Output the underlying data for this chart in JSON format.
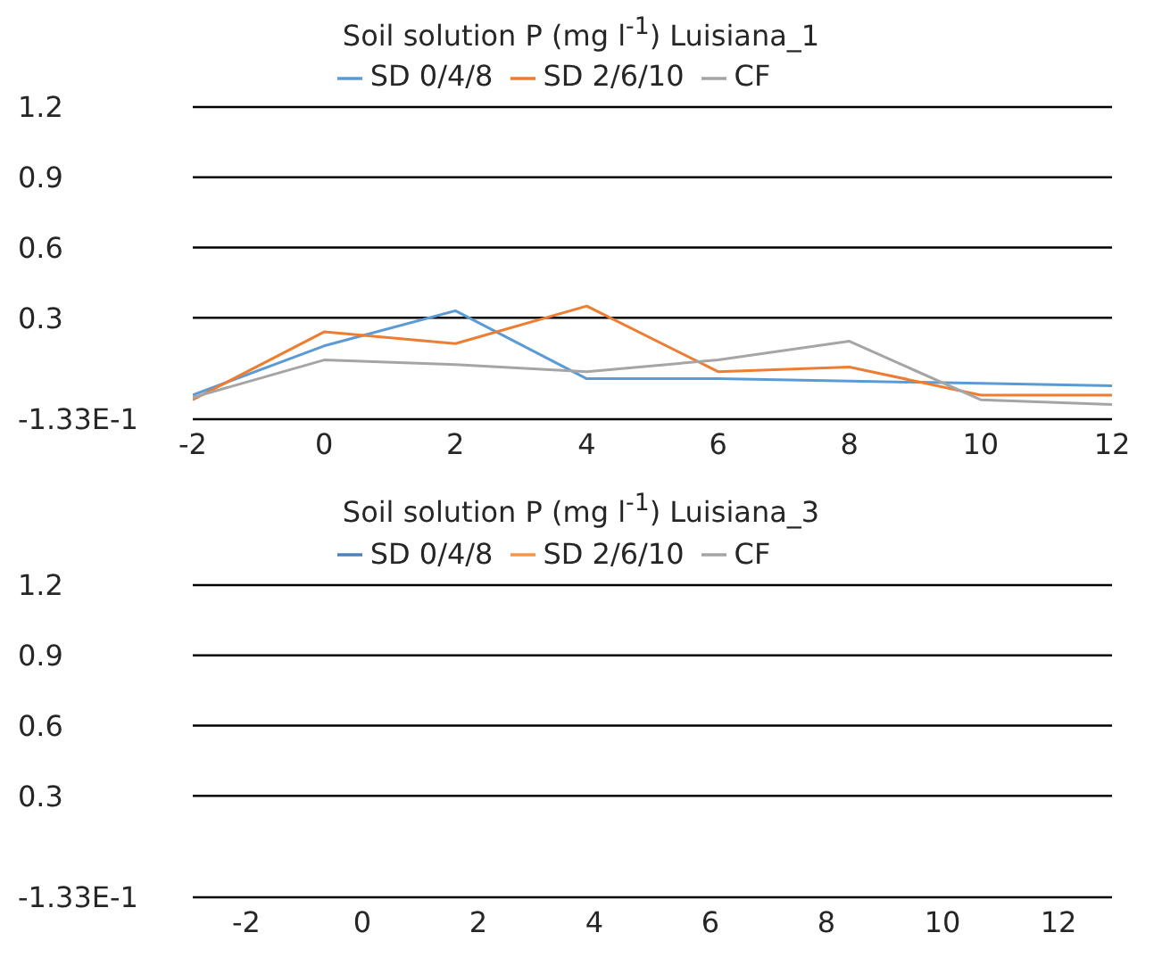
{
  "chart_data": [
    {
      "type": "line",
      "title": "Soil solution P (mg l$^{-1}$) Luisiana_1",
      "x": [
        -2,
        0,
        2,
        4,
        6,
        8,
        10,
        12
      ],
      "series": [
        {
          "name": "SD 0/4/8",
          "color": "#5b9bd5",
          "values": [
            -0.03,
            0.18,
            0.33,
            0.04,
            0.04,
            0.03,
            0.02,
            0.01
          ]
        },
        {
          "name": "SD 2/6/10",
          "color": "#ed7d31",
          "values": [
            -0.05,
            0.24,
            0.19,
            0.35,
            0.07,
            0.09,
            -0.03,
            -0.03
          ]
        },
        {
          "name": "CF",
          "color": "#a5a5a5",
          "values": [
            -0.04,
            0.12,
            0.1,
            0.07,
            0.12,
            0.2,
            -0.05,
            -0.07
          ]
        }
      ],
      "xlim": [
        -2,
        12
      ],
      "xticks": [
        -2,
        0,
        2,
        4,
        6,
        8,
        10,
        12
      ],
      "ylim": [
        -0.133,
        1.2
      ],
      "yticks": [
        {
          "value": -0.133,
          "label": "-1.33E-1"
        },
        0.3,
        0.6,
        0.9,
        1.2
      ],
      "grid": "y",
      "legend": "top",
      "marker": "none"
    },
    {
      "type": "line",
      "title": "Soil solution P (mg l$^{-1}$) Luisiana_3",
      "categories": [
        "-2",
        "0",
        "2",
        "4",
        "6",
        "8",
        "10",
        "12"
      ],
      "series": [
        {
          "name": "SD 0/4/8",
          "color": "#4f81bd",
          "values": [
            null,
            null,
            null,
            null,
            null,
            null,
            null,
            null
          ]
        },
        {
          "name": "SD 2/6/10",
          "color": "#f79646",
          "values": [
            null,
            null,
            null,
            null,
            null,
            null,
            null,
            null
          ]
        },
        {
          "name": "CF",
          "color": "#a5a5a5",
          "values": [
            null,
            null,
            null,
            null,
            null,
            null,
            null,
            null
          ]
        }
      ],
      "ylim": [
        -0.133,
        1.2
      ],
      "yticks": [
        {
          "value": -0.133,
          "label": "-1.33E-1"
        },
        0.3,
        0.6,
        0.9,
        1.2
      ],
      "grid": "y",
      "legend": "top",
      "marker": "none"
    }
  ]
}
